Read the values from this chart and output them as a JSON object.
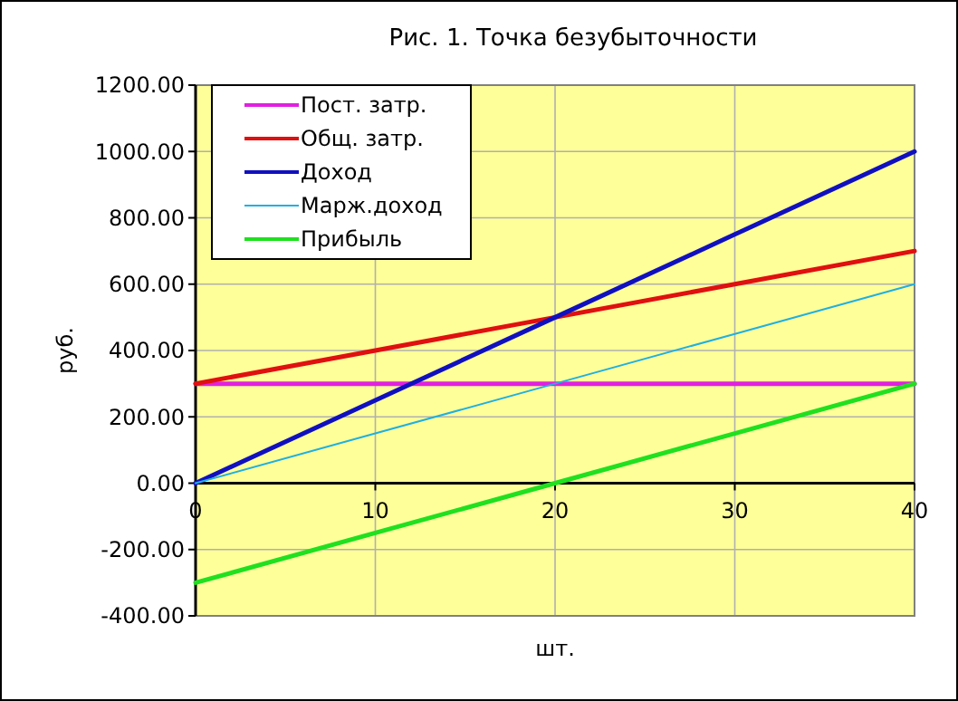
{
  "chart_data": {
    "type": "line",
    "title": "Рис. 1. Точка безубыточности",
    "xlabel": "шт.",
    "ylabel": "руб.",
    "x": [
      0,
      10,
      20,
      30,
      40
    ],
    "series": [
      {
        "name": "Пост. затр.",
        "color": "#e020e0",
        "values": [
          300,
          300,
          300,
          300,
          300
        ]
      },
      {
        "name": "Общ. затр.",
        "color": "#e01010",
        "values": [
          300,
          400,
          500,
          600,
          700
        ]
      },
      {
        "name": "Доход",
        "color": "#1010c0",
        "values": [
          0,
          250,
          500,
          750,
          1000
        ]
      },
      {
        "name": "Марж.доход",
        "color": "#20b0e0",
        "values": [
          0,
          150,
          300,
          450,
          600
        ]
      },
      {
        "name": "Прибыль",
        "color": "#20e020",
        "values": [
          -300,
          -150,
          0,
          150,
          300
        ]
      }
    ],
    "xlim": [
      0,
      40
    ],
    "xticks": [
      0,
      10,
      20,
      30,
      40
    ],
    "ylim": [
      -400,
      1200
    ],
    "yticks": [
      {
        "value": -400,
        "label": "-400.00"
      },
      {
        "value": -200,
        "label": "-200.00"
      },
      {
        "value": 0,
        "label": "0.00"
      },
      {
        "value": 200,
        "label": "200.00"
      },
      {
        "value": 400,
        "label": "400.00"
      },
      {
        "value": 600,
        "label": "600.00"
      },
      {
        "value": 800,
        "label": "800.00"
      },
      {
        "value": 1000,
        "label": "1000.00"
      },
      {
        "value": 1200,
        "label": "1200.00"
      }
    ],
    "grid": true,
    "legend": "top left",
    "marker": "none",
    "line_style": "solid"
  }
}
